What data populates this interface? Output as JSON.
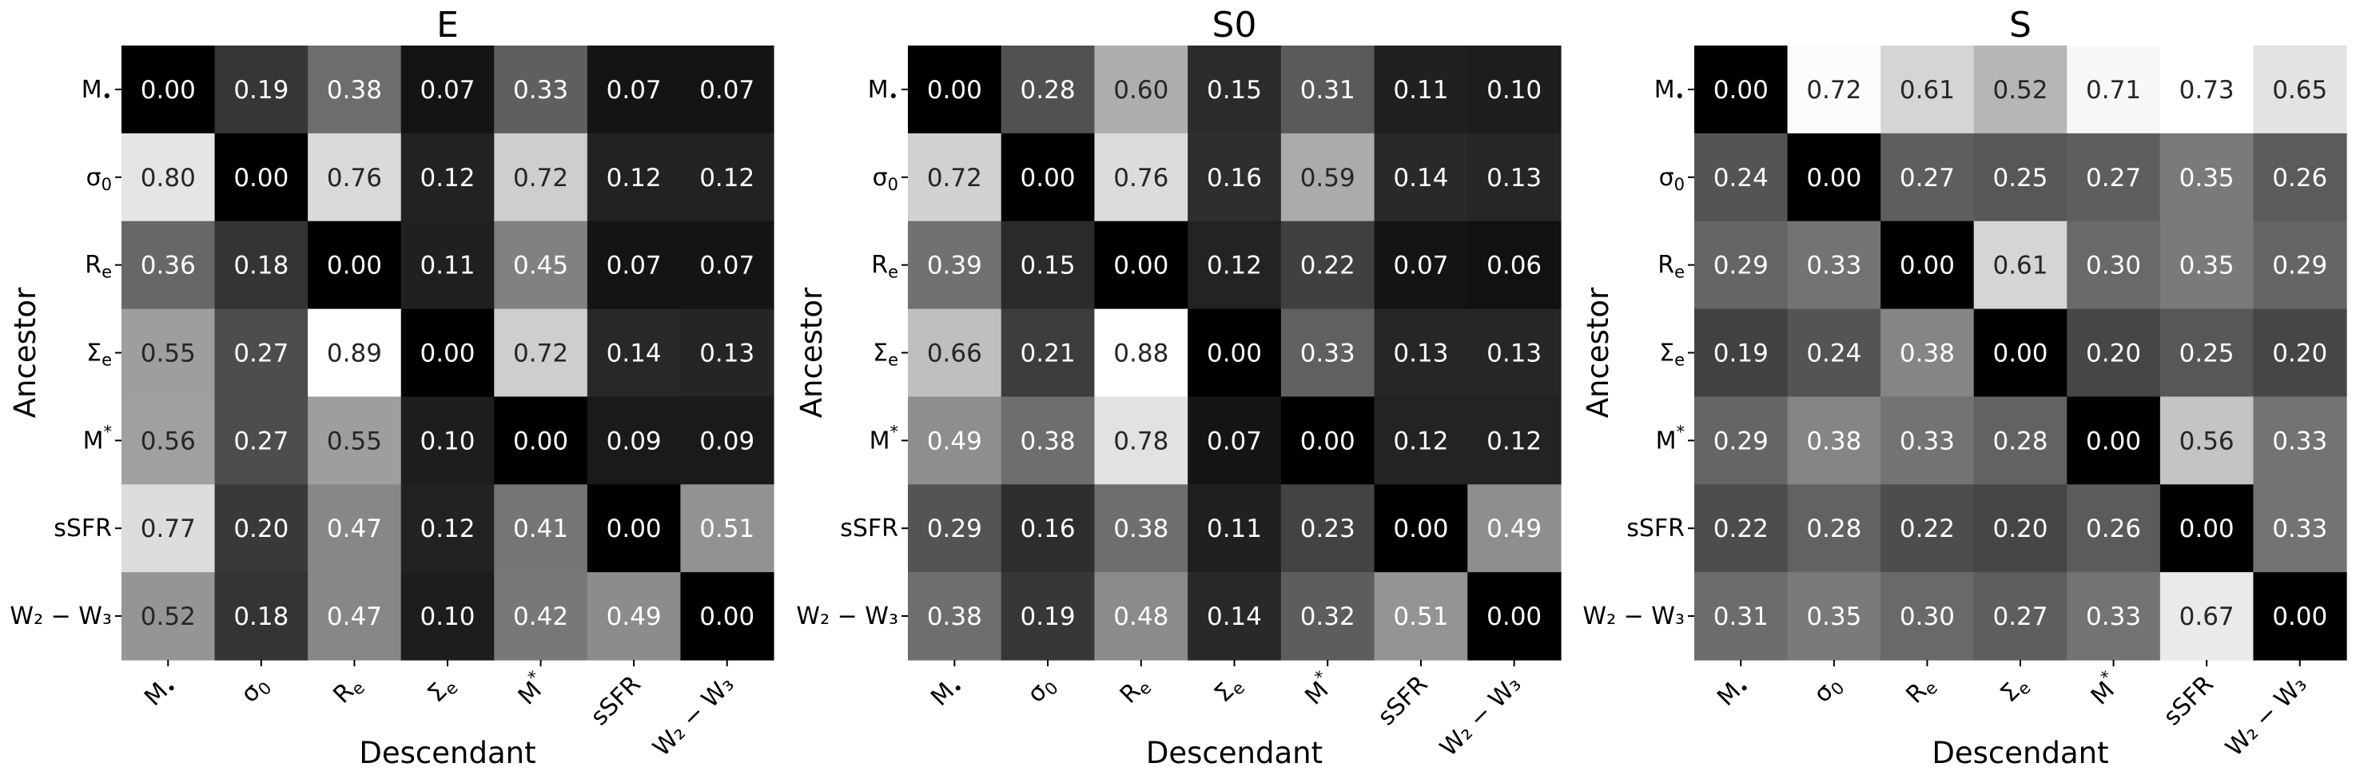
{
  "figure_title": "",
  "chart_data": [
    {
      "type": "heatmap",
      "title": "E",
      "xlabel": "Descendant",
      "ylabel": "Ancestor",
      "colormap": "gray",
      "vrange": [
        0,
        0.89
      ],
      "row_labels": [
        {
          "base": "M",
          "sub": "•",
          "sup": ""
        },
        {
          "base": "σ",
          "sub": "0",
          "sup": ""
        },
        {
          "base": "R",
          "sub": "e",
          "sup": ""
        },
        {
          "base": "Σ",
          "sub": "e",
          "sup": ""
        },
        {
          "base": "M",
          "sub": "",
          "sup": "*"
        },
        {
          "base": "sSFR",
          "sub": "",
          "sup": ""
        },
        {
          "base": "W₂ − W₃",
          "sub": "",
          "sup": ""
        }
      ],
      "col_labels": [
        {
          "base": "M",
          "sub": "•",
          "sup": ""
        },
        {
          "base": "σ",
          "sub": "0",
          "sup": ""
        },
        {
          "base": "R",
          "sub": "e",
          "sup": ""
        },
        {
          "base": "Σ",
          "sub": "e",
          "sup": ""
        },
        {
          "base": "M",
          "sub": "",
          "sup": "*"
        },
        {
          "base": "sSFR",
          "sub": "",
          "sup": ""
        },
        {
          "base": "W₂ − W₃",
          "sub": "",
          "sup": ""
        }
      ],
      "values": [
        [
          0.0,
          0.19,
          0.38,
          0.07,
          0.33,
          0.07,
          0.07
        ],
        [
          0.8,
          0.0,
          0.76,
          0.12,
          0.72,
          0.12,
          0.12
        ],
        [
          0.36,
          0.18,
          0.0,
          0.11,
          0.45,
          0.07,
          0.07
        ],
        [
          0.55,
          0.27,
          0.89,
          0.0,
          0.72,
          0.14,
          0.13
        ],
        [
          0.56,
          0.27,
          0.55,
          0.1,
          0.0,
          0.09,
          0.09
        ],
        [
          0.77,
          0.2,
          0.47,
          0.12,
          0.41,
          0.0,
          0.51
        ],
        [
          0.52,
          0.18,
          0.47,
          0.1,
          0.42,
          0.49,
          0.0
        ]
      ]
    },
    {
      "type": "heatmap",
      "title": "S0",
      "xlabel": "Descendant",
      "ylabel": "Ancestor",
      "colormap": "gray",
      "vrange": [
        0,
        0.88
      ],
      "row_labels": [
        {
          "base": "M",
          "sub": "•",
          "sup": ""
        },
        {
          "base": "σ",
          "sub": "0",
          "sup": ""
        },
        {
          "base": "R",
          "sub": "e",
          "sup": ""
        },
        {
          "base": "Σ",
          "sub": "e",
          "sup": ""
        },
        {
          "base": "M",
          "sub": "",
          "sup": "*"
        },
        {
          "base": "sSFR",
          "sub": "",
          "sup": ""
        },
        {
          "base": "W₂ − W₃",
          "sub": "",
          "sup": ""
        }
      ],
      "col_labels": [
        {
          "base": "M",
          "sub": "•",
          "sup": ""
        },
        {
          "base": "σ",
          "sub": "0",
          "sup": ""
        },
        {
          "base": "R",
          "sub": "e",
          "sup": ""
        },
        {
          "base": "Σ",
          "sub": "e",
          "sup": ""
        },
        {
          "base": "M",
          "sub": "",
          "sup": "*"
        },
        {
          "base": "sSFR",
          "sub": "",
          "sup": ""
        },
        {
          "base": "W₂ − W₃",
          "sub": "",
          "sup": ""
        }
      ],
      "values": [
        [
          0.0,
          0.28,
          0.6,
          0.15,
          0.31,
          0.11,
          0.1
        ],
        [
          0.72,
          0.0,
          0.76,
          0.16,
          0.59,
          0.14,
          0.13
        ],
        [
          0.39,
          0.15,
          0.0,
          0.12,
          0.22,
          0.07,
          0.06
        ],
        [
          0.66,
          0.21,
          0.88,
          0.0,
          0.33,
          0.13,
          0.13
        ],
        [
          0.49,
          0.38,
          0.78,
          0.07,
          0.0,
          0.12,
          0.12
        ],
        [
          0.29,
          0.16,
          0.38,
          0.11,
          0.23,
          0.0,
          0.49
        ],
        [
          0.38,
          0.19,
          0.48,
          0.14,
          0.32,
          0.51,
          0.0
        ]
      ]
    },
    {
      "type": "heatmap",
      "title": "S",
      "xlabel": "Descendant",
      "ylabel": "Ancestor",
      "colormap": "gray",
      "vrange": [
        0,
        0.73
      ],
      "row_labels": [
        {
          "base": "M",
          "sub": "•",
          "sup": ""
        },
        {
          "base": "σ",
          "sub": "0",
          "sup": ""
        },
        {
          "base": "R",
          "sub": "e",
          "sup": ""
        },
        {
          "base": "Σ",
          "sub": "e",
          "sup": ""
        },
        {
          "base": "M",
          "sub": "",
          "sup": "*"
        },
        {
          "base": "sSFR",
          "sub": "",
          "sup": ""
        },
        {
          "base": "W₂ − W₃",
          "sub": "",
          "sup": ""
        }
      ],
      "col_labels": [
        {
          "base": "M",
          "sub": "•",
          "sup": ""
        },
        {
          "base": "σ",
          "sub": "0",
          "sup": ""
        },
        {
          "base": "R",
          "sub": "e",
          "sup": ""
        },
        {
          "base": "Σ",
          "sub": "e",
          "sup": ""
        },
        {
          "base": "M",
          "sub": "",
          "sup": "*"
        },
        {
          "base": "sSFR",
          "sub": "",
          "sup": ""
        },
        {
          "base": "W₂ − W₃",
          "sub": "",
          "sup": ""
        }
      ],
      "values": [
        [
          0.0,
          0.72,
          0.61,
          0.52,
          0.71,
          0.73,
          0.65
        ],
        [
          0.24,
          0.0,
          0.27,
          0.25,
          0.27,
          0.35,
          0.26
        ],
        [
          0.29,
          0.33,
          0.0,
          0.61,
          0.3,
          0.35,
          0.29
        ],
        [
          0.19,
          0.24,
          0.38,
          0.0,
          0.2,
          0.25,
          0.2
        ],
        [
          0.29,
          0.38,
          0.33,
          0.28,
          0.0,
          0.56,
          0.33
        ],
        [
          0.22,
          0.28,
          0.22,
          0.2,
          0.26,
          0.0,
          0.33
        ],
        [
          0.31,
          0.35,
          0.3,
          0.27,
          0.33,
          0.67,
          0.0
        ]
      ]
    }
  ]
}
